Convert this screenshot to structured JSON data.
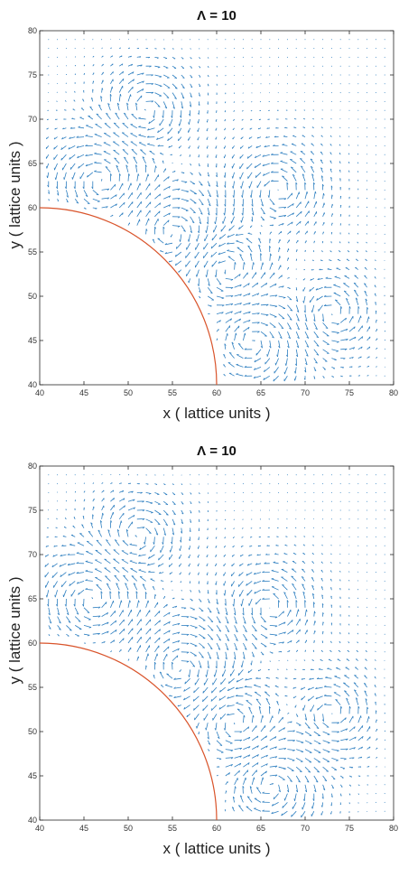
{
  "colors": {
    "arrow": "#2e7fc0",
    "curve": "#d9542b",
    "axis": "#262626",
    "background": "#ffffff"
  },
  "charts": [
    {
      "title": "Λ = 10",
      "chart_data": {
        "type": "quiver",
        "title": "Λ = 10",
        "xlabel": "x ( lattice units )",
        "ylabel": "y ( lattice units )",
        "xlim": [
          40,
          80
        ],
        "ylim": [
          40,
          80
        ],
        "xticks": [
          40,
          45,
          50,
          55,
          60,
          65,
          70,
          75,
          80
        ],
        "yticks": [
          40,
          45,
          50,
          55,
          60,
          65,
          70,
          75,
          80
        ],
        "grid": false,
        "boundary": {
          "shape": "quarter-circle",
          "center": [
            40,
            40
          ],
          "radius": 20
        },
        "field": {
          "x_range": [
            41,
            79
          ],
          "y_range": [
            41,
            79
          ],
          "step": 1,
          "vortices": [
            {
              "center": [
                47,
                63
              ],
              "strength": 1.5,
              "sign": 1
            },
            {
              "center": [
                55,
                57
              ],
              "strength": 2.0,
              "sign": -1
            },
            {
              "center": [
                61,
                53
              ],
              "strength": 1.8,
              "sign": 1
            },
            {
              "center": [
                64,
                45
              ],
              "strength": 1.4,
              "sign": -1
            },
            {
              "center": [
                67,
                62
              ],
              "strength": 1.0,
              "sign": 1
            },
            {
              "center": [
                52,
                71
              ],
              "strength": 1.0,
              "sign": -1
            },
            {
              "center": [
                73,
                48
              ],
              "strength": 0.9,
              "sign": 1
            }
          ]
        }
      }
    },
    {
      "title": "Λ = 10",
      "chart_data": {
        "type": "quiver",
        "title": "Λ = 10",
        "xlabel": "x ( lattice units )",
        "ylabel": "y ( lattice units )",
        "xlim": [
          40,
          80
        ],
        "ylim": [
          40,
          80
        ],
        "xticks": [
          40,
          45,
          50,
          55,
          60,
          65,
          70,
          75,
          80
        ],
        "yticks": [
          40,
          45,
          50,
          55,
          60,
          65,
          70,
          75,
          80
        ],
        "grid": false,
        "boundary": {
          "shape": "quarter-circle",
          "center": [
            40,
            40
          ],
          "radius": 20
        },
        "field": {
          "x_range": [
            41,
            79
          ],
          "y_range": [
            41,
            79
          ],
          "step": 1,
          "vortices": [
            {
              "center": [
                46,
                65
              ],
              "strength": 1.5,
              "sign": 1
            },
            {
              "center": [
                56,
                57
              ],
              "strength": 2.0,
              "sign": -1
            },
            {
              "center": [
                62,
                51
              ],
              "strength": 1.8,
              "sign": 1
            },
            {
              "center": [
                66,
                44
              ],
              "strength": 1.4,
              "sign": -1
            },
            {
              "center": [
                66,
                64
              ],
              "strength": 1.0,
              "sign": 1
            },
            {
              "center": [
                51,
                72
              ],
              "strength": 1.0,
              "sign": -1
            },
            {
              "center": [
                73,
                52
              ],
              "strength": 0.9,
              "sign": 1
            }
          ]
        }
      }
    }
  ]
}
